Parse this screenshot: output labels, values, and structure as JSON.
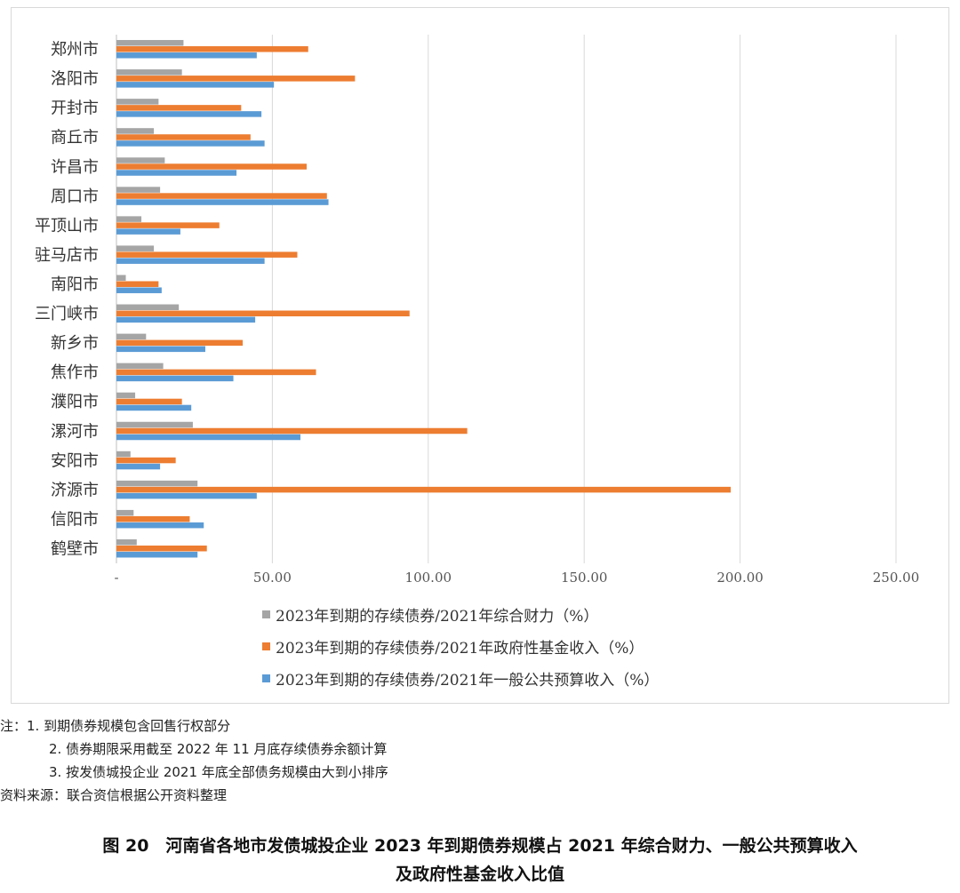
{
  "chart_data": {
    "type": "bar",
    "orientation": "horizontal",
    "categories": [
      "郑州市",
      "洛阳市",
      "开封市",
      "商丘市",
      "许昌市",
      "周口市",
      "平顶山市",
      "驻马店市",
      "南阳市",
      "三门峡市",
      "新乡市",
      "焦作市",
      "濮阳市",
      "漯河市",
      "安阳市",
      "济源市",
      "信阳市",
      "鹤壁市"
    ],
    "series": [
      {
        "name": "2023年到期的存续债券/2021年综合财力（%）",
        "color": "#a5a5a5",
        "values": [
          21.5,
          21,
          13.5,
          12,
          15.5,
          14,
          8,
          12,
          3,
          20,
          9.5,
          15,
          6,
          24.5,
          4.5,
          26,
          5.5,
          6.5
        ]
      },
      {
        "name": "2023年到期的存续债券/2021年政府性基金收入（%）",
        "color": "#ed7d31",
        "values": [
          61.5,
          76.5,
          40,
          43,
          61,
          67.5,
          33,
          58,
          13.5,
          94,
          40.5,
          64,
          21,
          112.5,
          19,
          197,
          23.5,
          29
        ]
      },
      {
        "name": "2023年到期的存续债券/2021年一般公共预算收入（%）",
        "color": "#5b9bd5",
        "values": [
          45,
          50.5,
          46.5,
          47.5,
          38.5,
          68,
          20.5,
          47.5,
          14.5,
          44.5,
          28.5,
          37.5,
          24,
          59,
          14,
          45,
          28,
          26
        ]
      }
    ],
    "xlim": [
      0,
      250
    ],
    "xticks": [
      "-",
      "50.00",
      "100.00",
      "150.00",
      "200.00",
      "250.00"
    ],
    "grid": "vertical",
    "legend_position": "bottom"
  },
  "notes": {
    "line1": "注：1. 到期债券规模包含回售行权部分",
    "line2": "2. 债券期限采用截至 2022 年 11 月底存续债券余额计算",
    "line3": "3. 按发债城投企业 2021 年底全部债务规模由大到小排序",
    "source": "资料来源：联合资信根据公开资料整理"
  },
  "caption": {
    "line1": "图 20　河南省各地市发债城投企业 2023 年到期债券规模占 2021 年综合财力、一般公共预算收入",
    "line2": "及政府性基金收入比值"
  }
}
